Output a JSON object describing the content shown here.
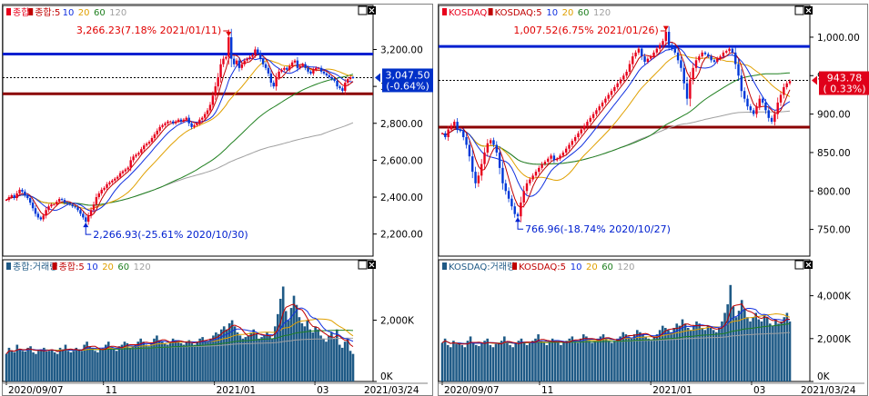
{
  "colors": {
    "candle_up": "#e8001c",
    "candle_down": "#0038d8",
    "ma5": "#c00000",
    "ma10": "#1030e0",
    "ma20": "#e0a000",
    "ma60": "#208020",
    "ma120": "#a0a0a0",
    "resistance_line": "#0020d0",
    "support_line": "#8b0000",
    "volume_bar": "#1f5a86",
    "price_badge_kospi": "#0030c8",
    "price_badge_kosdaq": "#e0001a"
  },
  "panels": {
    "kospi_price": {
      "legend": [
        {
          "text": "종합",
          "color": "#e8001c",
          "icon": "candle-icon"
        },
        {
          "text": "종합:5",
          "color": "#c00000",
          "icon": "line-icon"
        },
        {
          "text": "10",
          "color": "#1030e0"
        },
        {
          "text": "20",
          "color": "#e0a000"
        },
        {
          "text": "60",
          "color": "#208020"
        },
        {
          "text": "120",
          "color": "#a0a0a0"
        }
      ],
      "high_annotation": "3,266.23(7.18% 2021/01/11)",
      "low_annotation": "2,266.93(-25.61% 2020/10/30)",
      "current_value": "3,047.50",
      "current_change": "(-0.64%)",
      "y_ticks": [
        "3,200.00",
        "3,000.00",
        "2,800.00",
        "2,600.00",
        "2,400.00",
        "2,200.00"
      ]
    },
    "kosdaq_price": {
      "legend": [
        {
          "text": "KOSDAQ",
          "color": "#e8001c",
          "icon": "candle-icon"
        },
        {
          "text": "KOSDAQ:5",
          "color": "#c00000",
          "icon": "line-icon"
        },
        {
          "text": "10",
          "color": "#1030e0"
        },
        {
          "text": "20",
          "color": "#e0a000"
        },
        {
          "text": "60",
          "color": "#208020"
        },
        {
          "text": "120",
          "color": "#a0a0a0"
        }
      ],
      "high_annotation": "1,007.52(6.75% 2021/01/26)",
      "low_annotation": "766.96(-18.74% 2020/10/27)",
      "current_value": "943.78",
      "current_change": "( 0.33%)",
      "y_ticks": [
        "1,000.00",
        "950.00",
        "900.00",
        "850.00",
        "800.00",
        "750.00"
      ]
    },
    "kospi_volume": {
      "legend": [
        {
          "text": "종합:거래량",
          "color": "#1f5a86",
          "icon": "bar-icon"
        },
        {
          "text": "종합:5",
          "color": "#c00000",
          "icon": "line-icon"
        },
        {
          "text": "10",
          "color": "#1030e0"
        },
        {
          "text": "20",
          "color": "#e0a000"
        },
        {
          "text": "60",
          "color": "#208020"
        },
        {
          "text": "120",
          "color": "#a0a0a0"
        }
      ],
      "y_ticks": [
        "2,000K",
        "0K"
      ],
      "x_ticks": [
        "2020/09/07",
        "11",
        "2021/01",
        "03"
      ],
      "x_end": "2021/03/24"
    },
    "kosdaq_volume": {
      "legend": [
        {
          "text": "KOSDAQ:거래량",
          "color": "#1f5a86",
          "icon": "bar-icon"
        },
        {
          "text": "KOSDAQ:5",
          "color": "#c00000",
          "icon": "line-icon"
        },
        {
          "text": "10",
          "color": "#1030e0"
        },
        {
          "text": "20",
          "color": "#e0a000"
        },
        {
          "text": "60",
          "color": "#208020"
        },
        {
          "text": "120",
          "color": "#a0a0a0"
        }
      ],
      "y_ticks": [
        "4,000K",
        "2,000K",
        "0K"
      ],
      "x_ticks": [
        "2020/09/07",
        "11",
        "2021/01",
        "03"
      ],
      "x_end": "2021/03/24"
    }
  },
  "window_buttons": {
    "maximize": "□",
    "close": "✕"
  },
  "chart_data": [
    {
      "type": "candlestick",
      "name": "종합",
      "x_range": [
        "2020/09/07",
        "2021/03/24"
      ],
      "ylim": [
        2100,
        3350
      ],
      "high": {
        "value": 3266.23,
        "change_pct": 7.18,
        "date": "2021/01/11"
      },
      "low": {
        "value": 2266.93,
        "change_pct": -25.61,
        "date": "2020/10/30"
      },
      "last": {
        "value": 3047.5,
        "change_pct": -0.64,
        "date": "2021/03/24"
      },
      "horizontal_lines": [
        {
          "value": 3175,
          "color": "blue"
        },
        {
          "value": 2960,
          "color": "darkred"
        }
      ],
      "close_series": [
        2385,
        2400,
        2410,
        2395,
        2420,
        2440,
        2430,
        2410,
        2395,
        2370,
        2340,
        2310,
        2290,
        2280,
        2300,
        2330,
        2350,
        2360,
        2360,
        2375,
        2390,
        2385,
        2370,
        2365,
        2360,
        2350,
        2345,
        2330,
        2310,
        2290,
        2267,
        2300,
        2330,
        2360,
        2400,
        2420,
        2440,
        2450,
        2470,
        2480,
        2490,
        2500,
        2510,
        2530,
        2540,
        2550,
        2560,
        2600,
        2620,
        2630,
        2640,
        2660,
        2680,
        2690,
        2700,
        2720,
        2740,
        2760,
        2780,
        2790,
        2800,
        2810,
        2810,
        2800,
        2810,
        2820,
        2810,
        2820,
        2830,
        2800,
        2780,
        2790,
        2800,
        2820,
        2830,
        2850,
        2870,
        2900,
        2950,
        3000,
        3050,
        3120,
        3150,
        3160,
        3266,
        3150,
        3120,
        3140,
        3100,
        3120,
        3140,
        3150,
        3160,
        3170,
        3200,
        3180,
        3150,
        3120,
        3100,
        3070,
        3020,
        3000,
        3050,
        3080,
        3090,
        3100,
        3090,
        3110,
        3130,
        3140,
        3100,
        3110,
        3120,
        3100,
        3080,
        3070,
        3090,
        3100,
        3100,
        3080,
        3070,
        3060,
        3050,
        3040,
        3030,
        3000,
        2990,
        2976,
        3020,
        3040,
        3050,
        3047
      ]
    },
    {
      "type": "candlestick",
      "name": "KOSDAQ",
      "x_range": [
        "2020/09/07",
        "2021/03/24"
      ],
      "ylim": [
        720,
        1020
      ],
      "high": {
        "value": 1007.52,
        "change_pct": 6.75,
        "date": "2021/01/26"
      },
      "low": {
        "value": 766.96,
        "change_pct": -18.74,
        "date": "2020/10/27"
      },
      "last": {
        "value": 943.78,
        "change_pct": 0.33,
        "date": "2021/03/24"
      },
      "horizontal_lines": [
        {
          "value": 988,
          "color": "blue"
        },
        {
          "value": 883,
          "color": "darkred"
        }
      ],
      "close_series": [
        875,
        870,
        880,
        885,
        890,
        880,
        878,
        870,
        860,
        845,
        825,
        810,
        820,
        835,
        850,
        862,
        866,
        860,
        850,
        830,
        810,
        800,
        790,
        780,
        770,
        767,
        785,
        800,
        810,
        815,
        820,
        825,
        830,
        835,
        838,
        842,
        846,
        840,
        842,
        846,
        850,
        855,
        860,
        865,
        870,
        875,
        880,
        885,
        890,
        895,
        900,
        905,
        910,
        915,
        920,
        925,
        930,
        935,
        940,
        945,
        950,
        955,
        965,
        975,
        980,
        985,
        975,
        968,
        972,
        975,
        980,
        985,
        990,
        995,
        1007,
        990,
        985,
        980,
        970,
        960,
        940,
        920,
        945,
        960,
        970,
        975,
        980,
        978,
        975,
        970,
        968,
        972,
        975,
        980,
        982,
        985,
        980,
        965,
        950,
        930,
        920,
        910,
        905,
        900,
        910,
        920,
        915,
        905,
        895,
        890,
        900,
        915,
        925,
        935,
        940,
        943
      ]
    },
    {
      "type": "bar",
      "name": "종합:거래량",
      "ylim": [
        0,
        3500
      ],
      "unit": "K",
      "values": [
        900,
        1100,
        1000,
        950,
        1200,
        1050,
        1000,
        980,
        1100,
        1150,
        950,
        900,
        1000,
        1050,
        1100,
        980,
        1000,
        1050,
        950,
        900,
        1100,
        1050,
        1200,
        1000,
        950,
        1000,
        1100,
        1050,
        1000,
        1200,
        1300,
        1150,
        1100,
        1000,
        950,
        1050,
        1100,
        1200,
        1300,
        1100,
        1050,
        1000,
        1150,
        1200,
        1300,
        1250,
        1100,
        1150,
        1200,
        1300,
        1400,
        1300,
        1200,
        1150,
        1250,
        1400,
        1500,
        1350,
        1300,
        1250,
        1200,
        1300,
        1400,
        1350,
        1300,
        1250,
        1200,
        1300,
        1350,
        1250,
        1200,
        1300,
        1400,
        1450,
        1350,
        1300,
        1400,
        1500,
        1600,
        1550,
        1700,
        1800,
        1700,
        1900,
        2000,
        1800,
        1600,
        1500,
        1400,
        1450,
        1500,
        1600,
        1700,
        1550,
        1400,
        1450,
        1500,
        1600,
        1500,
        1400,
        1800,
        2200,
        2700,
        3100,
        2300,
        2000,
        2400,
        2800,
        2500,
        2100,
        1900,
        1800,
        2000,
        1700,
        1600,
        1800,
        1700,
        1500,
        1400,
        1300,
        1500,
        1600,
        1400,
        1700,
        1200,
        1100,
        1300,
        1400,
        1000,
        900
      ]
    },
    {
      "type": "bar",
      "name": "KOSDAQ:거래량",
      "ylim": [
        0,
        5000
      ],
      "unit": "K",
      "values": [
        1800,
        2000,
        1700,
        1600,
        1900,
        1750,
        1800,
        1700,
        1600,
        1900,
        2100,
        1800,
        1700,
        1650,
        1800,
        1900,
        2000,
        1700,
        1600,
        1750,
        1800,
        1900,
        2100,
        1800,
        1700,
        1600,
        1800,
        1900,
        2000,
        1800,
        1700,
        1800,
        1900,
        2000,
        2200,
        1900,
        1800,
        1700,
        1900,
        2000,
        1900,
        1800,
        1700,
        1800,
        1900,
        2000,
        2100,
        1900,
        1800,
        2000,
        2200,
        2100,
        1900,
        1800,
        1900,
        2000,
        2100,
        2200,
        2000,
        1900,
        1800,
        1900,
        2000,
        2100,
        2300,
        2200,
        2100,
        2000,
        2200,
        2400,
        2300,
        2200,
        2100,
        2000,
        1900,
        2100,
        2200,
        2400,
        2600,
        2500,
        2400,
        2300,
        2500,
        2700,
        2600,
        2900,
        2700,
        2500,
        2400,
        2600,
        2800,
        2700,
        2500,
        2400,
        2600,
        2500,
        2400,
        2300,
        2500,
        2800,
        3200,
        3600,
        4500,
        3500,
        3000,
        3300,
        3800,
        3400,
        3000,
        2800,
        3000,
        3200,
        2900,
        2800,
        3100,
        3000,
        2700,
        2600,
        2900,
        2700,
        2800,
        3000,
        3200,
        2800
      ]
    }
  ]
}
